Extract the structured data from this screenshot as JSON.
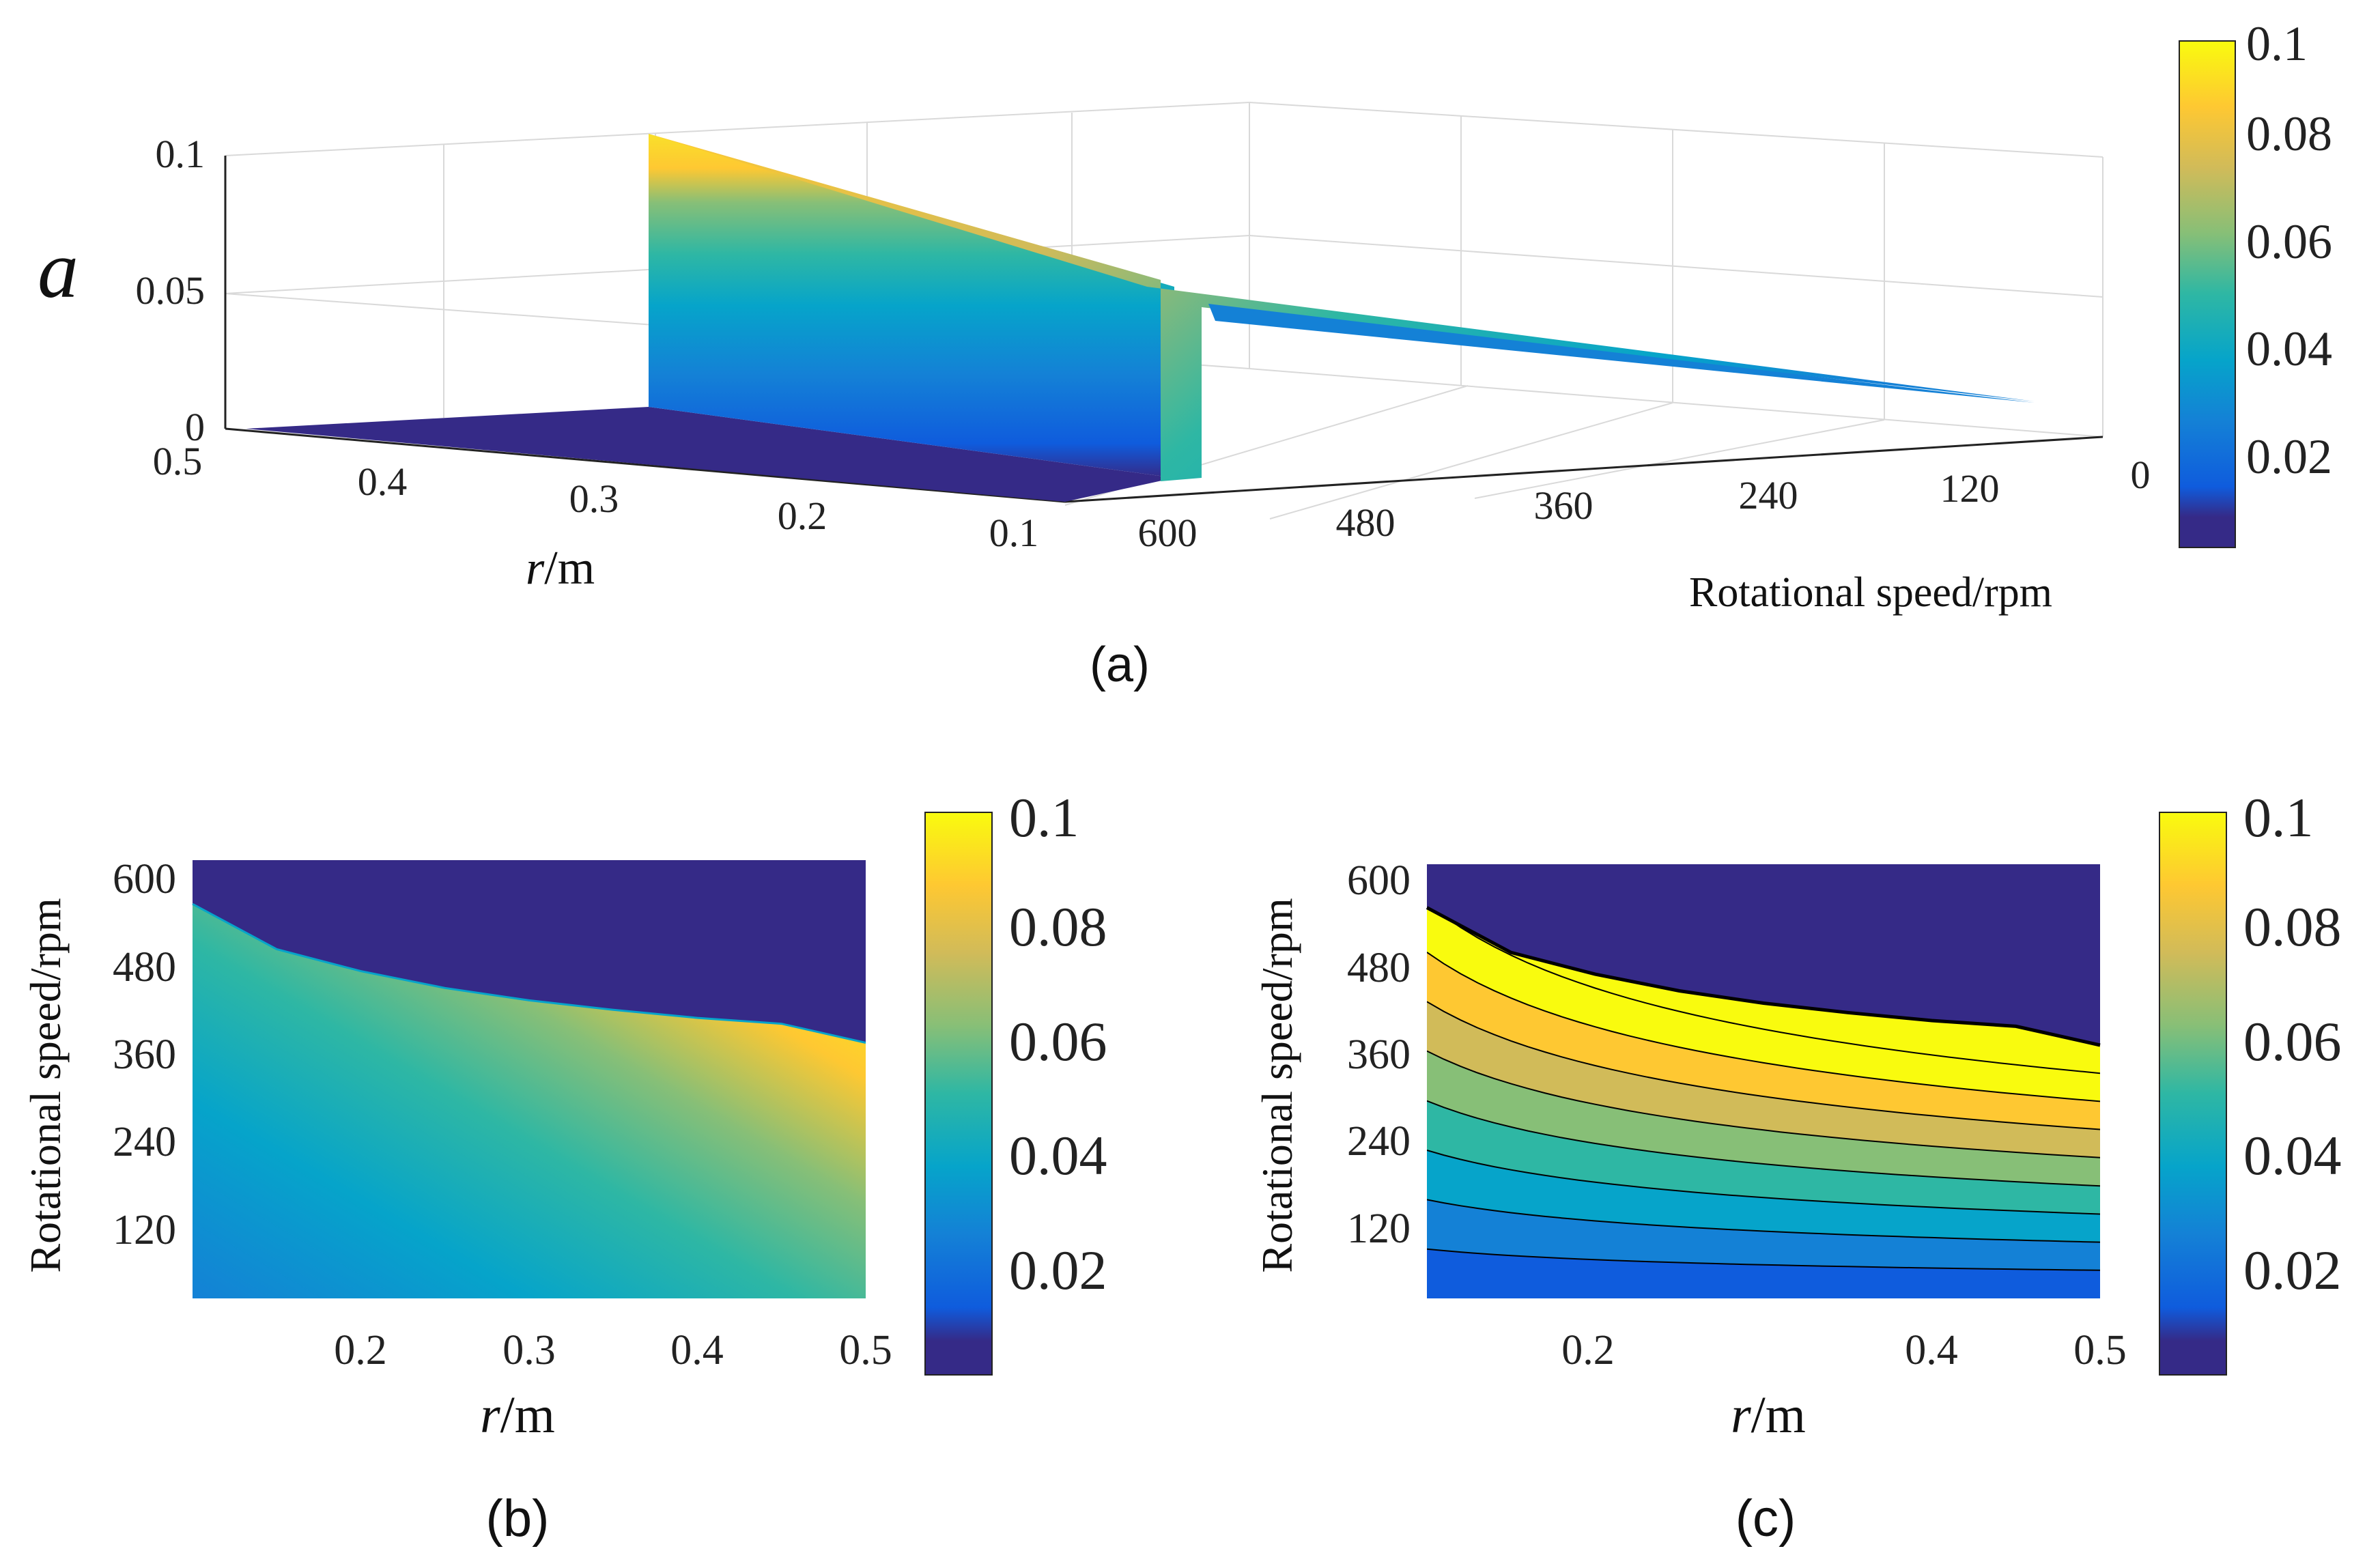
{
  "panels": {
    "a": {
      "caption": "(a)"
    },
    "b": {
      "caption": "(b)"
    },
    "c": {
      "caption": "(c)"
    }
  },
  "colormap": [
    "#352a87",
    "#0f5cdd",
    "#1481d6",
    "#06a4ca",
    "#2eb7a4",
    "#87bf77",
    "#d1bb59",
    "#fec832",
    "#f9fb0e"
  ],
  "chart_data": [
    {
      "type": "surface3d",
      "panel": "a",
      "title": "",
      "zlabel": "a",
      "xlabel_italic": "r",
      "xlabel_unit": "/m",
      "ylabel": "Rotational speed/rpm",
      "x_ticks": [
        "0.5",
        "0.4",
        "0.3",
        "0.2",
        "0.1"
      ],
      "y_ticks": [
        "600",
        "480",
        "360",
        "240",
        "120",
        "0"
      ],
      "z_ticks": [
        "0",
        "0.05",
        "0.1"
      ],
      "xlim": [
        0.1,
        0.5
      ],
      "ylim": [
        0,
        600
      ],
      "zlim": [
        0,
        0.1
      ],
      "colorbar": {
        "ticks": [
          "0.02",
          "0.04",
          "0.06",
          "0.08",
          "0.1"
        ],
        "range": [
          0,
          0.1
        ]
      }
    },
    {
      "type": "heatmap",
      "panel": "b",
      "title": "",
      "xlabel_italic": "r",
      "xlabel_unit": "/m",
      "ylabel": "Rotational speed/rpm",
      "x_ticks": [
        "0.2",
        "0.3",
        "0.4",
        "0.5"
      ],
      "y_ticks": [
        "120",
        "240",
        "360",
        "480",
        "600"
      ],
      "xlim": [
        0.1,
        0.5
      ],
      "ylim": [
        0,
        600
      ],
      "boundary": {
        "r": [
          0.1,
          0.15,
          0.2,
          0.25,
          0.3,
          0.35,
          0.4,
          0.45,
          0.5
        ],
        "rpm": [
          540,
          478,
          448,
          425,
          408,
          395,
          384,
          376,
          350
        ]
      },
      "colorbar": {
        "ticks": [
          "0.02",
          "0.04",
          "0.06",
          "0.08",
          "0.1"
        ],
        "range": [
          0,
          0.1
        ]
      }
    },
    {
      "type": "contour",
      "panel": "c",
      "title": "",
      "xlabel_italic": "r",
      "xlabel_unit": "/m",
      "ylabel": "Rotational speed/rpm",
      "x_ticks": [
        "0.2",
        "0.4",
        "0.5"
      ],
      "y_ticks": [
        "120",
        "240",
        "360",
        "480",
        "600"
      ],
      "xlim": [
        0.1,
        0.5
      ],
      "ylim": [
        0,
        600
      ],
      "levels": [
        0.0111,
        0.0222,
        0.0333,
        0.0444,
        0.0556,
        0.0667,
        0.0778,
        0.0889
      ],
      "boundary": {
        "r": [
          0.1,
          0.15,
          0.2,
          0.25,
          0.3,
          0.35,
          0.4,
          0.45,
          0.5
        ],
        "rpm": [
          540,
          478,
          448,
          425,
          408,
          395,
          384,
          376,
          350
        ]
      },
      "colorbar": {
        "ticks": [
          "0.02",
          "0.04",
          "0.06",
          "0.08",
          "0.1"
        ],
        "range": [
          0,
          0.1
        ]
      }
    }
  ]
}
